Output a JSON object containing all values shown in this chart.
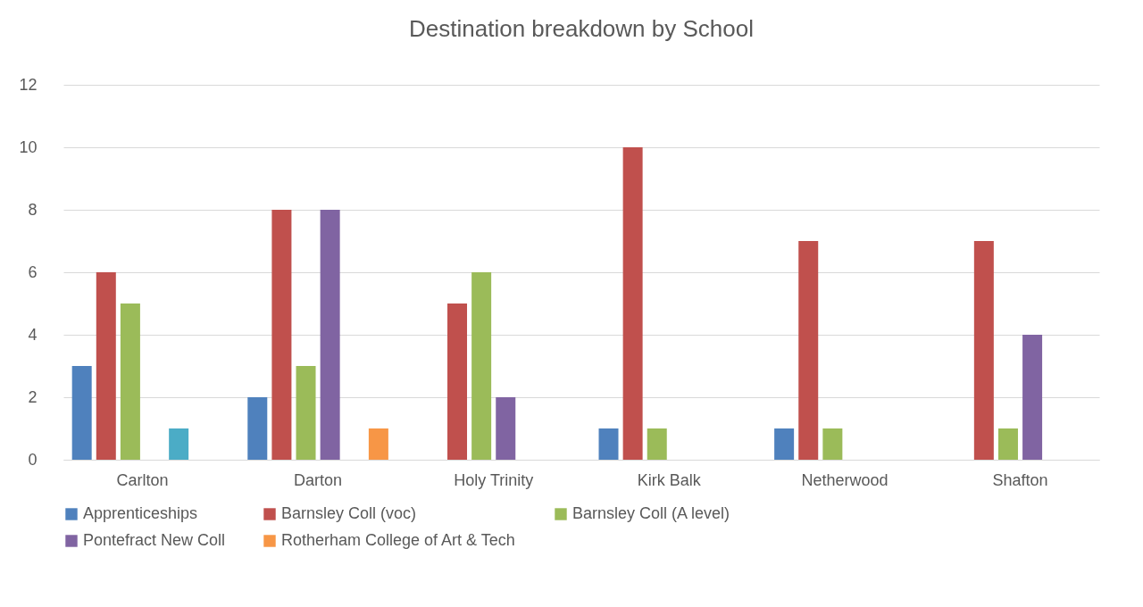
{
  "chart_data": {
    "type": "bar",
    "title": "Destination breakdown by School",
    "categories": [
      "Carlton",
      "Darton",
      "Holy Trinity",
      "Kirk Balk",
      "Netherwood",
      "Shafton"
    ],
    "series": [
      {
        "name": "Apprenticeships",
        "color": "#4f81bd",
        "values": [
          3,
          2,
          null,
          1,
          1,
          null
        ]
      },
      {
        "name": "Barnsley Coll (voc)",
        "color": "#c0504d",
        "values": [
          6,
          8,
          5,
          10,
          7,
          7
        ]
      },
      {
        "name": "Barnsley Coll (A level)",
        "color": "#9bbb59",
        "values": [
          5,
          3,
          6,
          1,
          1,
          1
        ]
      },
      {
        "name": "Pontefract New Coll",
        "color": "#8064a2",
        "values": [
          null,
          8,
          2,
          null,
          null,
          4
        ]
      },
      {
        "color": "#4bacc6",
        "values": [
          1,
          null,
          null,
          null,
          null,
          null
        ]
      },
      {
        "name": "Rotherham College of Art & Tech",
        "color": "#f79646",
        "values": [
          null,
          1,
          null,
          null,
          null,
          null
        ]
      }
    ],
    "ylim": [
      0,
      12
    ],
    "yticks": [
      0,
      2,
      4,
      6,
      8,
      10,
      12
    ],
    "grid": "y",
    "legend": "bottom"
  }
}
